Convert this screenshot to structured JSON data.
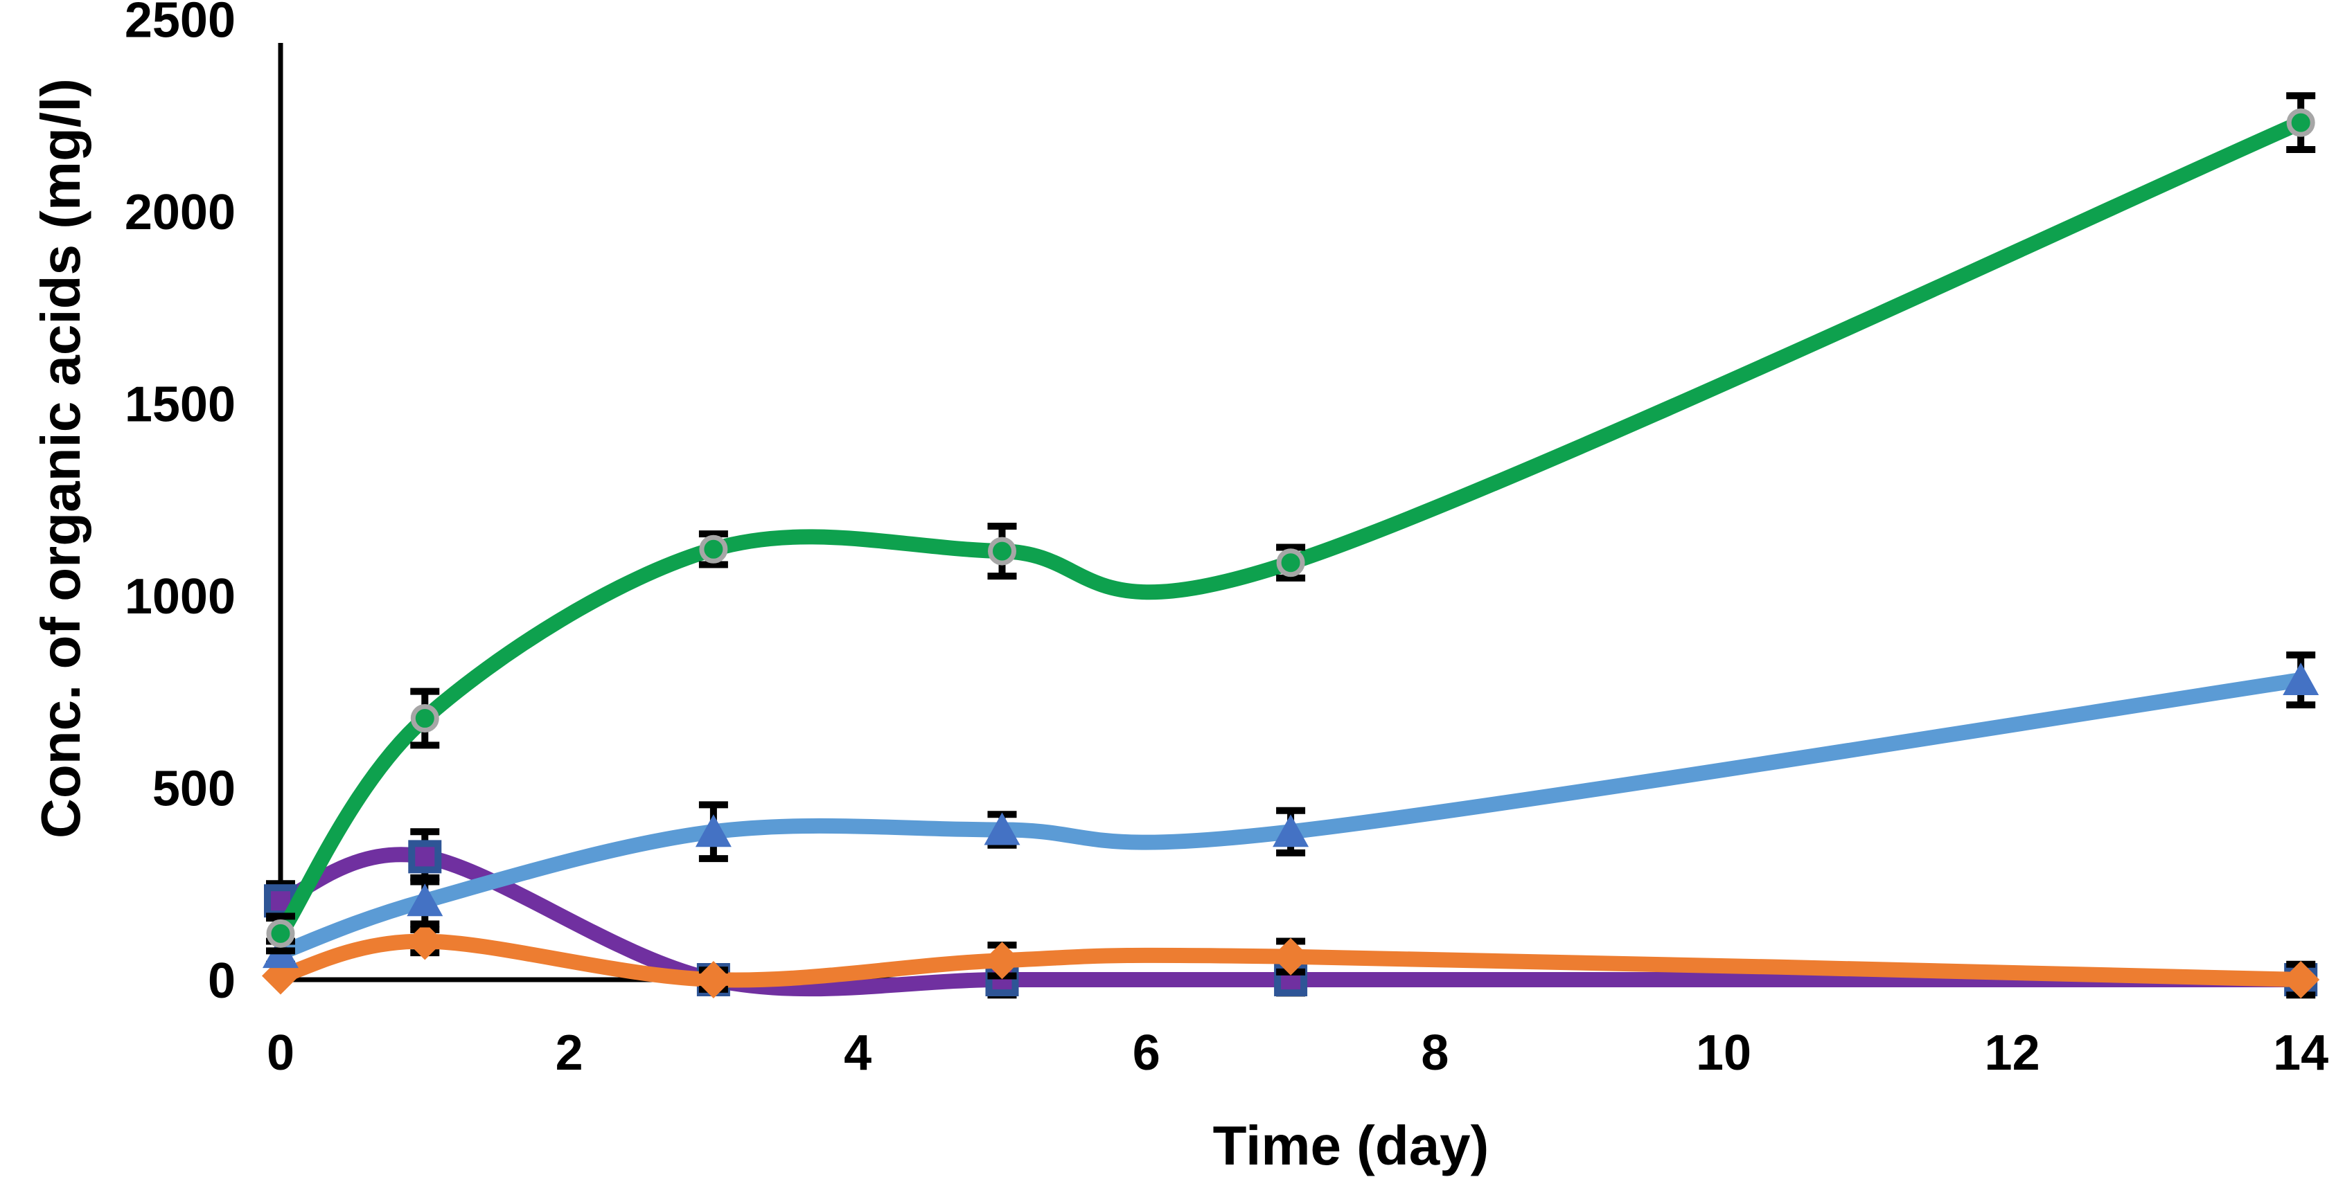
{
  "figure": {
    "background": "#ffffff",
    "axis_color": "#000000",
    "error_bar_color": "#000000"
  },
  "chart_data": {
    "type": "line",
    "title": "",
    "xlabel": "Time (day)",
    "ylabel": "Conc. of organic acids (mg/l)",
    "x": [
      0,
      1,
      3,
      5,
      7,
      14
    ],
    "x_ticks": [
      0,
      2,
      4,
      6,
      8,
      10,
      12,
      14
    ],
    "y_ticks": [
      0,
      500,
      1000,
      1500,
      2000,
      2500
    ],
    "xlim": [
      0,
      14
    ],
    "ylim": [
      0,
      2500
    ],
    "grid": false,
    "legend": "none",
    "smooth": true,
    "series": [
      {
        "name": "purple-squares",
        "marker": "square",
        "line_color": "#7030A0",
        "marker_fill": "#7030A0",
        "marker_edge": "#2E5596",
        "values": [
          205,
          320,
          0,
          0,
          0,
          0
        ],
        "errors": [
          45,
          65,
          0,
          40,
          35,
          0
        ]
      },
      {
        "name": "orange-diamonds",
        "marker": "diamond",
        "line_color": "#ED7D31",
        "marker_fill": "#ED7D31",
        "marker_edge": "none",
        "values": [
          10,
          100,
          0,
          50,
          60,
          0
        ],
        "errors": [
          0,
          30,
          25,
          40,
          40,
          40
        ]
      },
      {
        "name": "lightblue-triangles",
        "marker": "triangle",
        "line_color": "#5B9BD5",
        "marker_fill": "#4472C4",
        "marker_edge": "none",
        "values": [
          70,
          205,
          385,
          390,
          385,
          780
        ],
        "errors": [
          30,
          60,
          70,
          40,
          55,
          65
        ]
      },
      {
        "name": "green-circles",
        "marker": "circle",
        "line_color": "#0EA14E",
        "marker_fill": "#0EA14E",
        "marker_edge": "#A6A6A6",
        "values": [
          120,
          680,
          1120,
          1115,
          1085,
          2230
        ],
        "errors": [
          45,
          70,
          40,
          65,
          40,
          70
        ]
      }
    ]
  }
}
